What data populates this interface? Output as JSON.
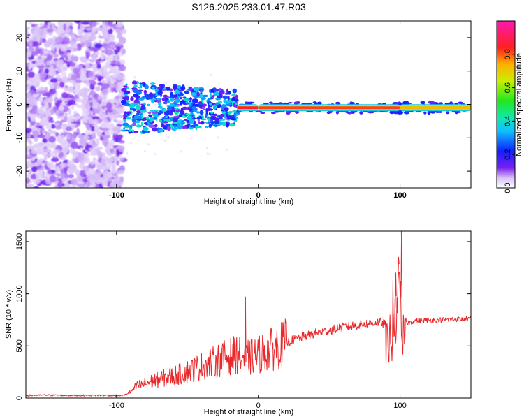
{
  "title": "S126.2025.233.01.47.R03",
  "colors": {
    "snr_line": "#e8282a",
    "cloud": "#6a16e6",
    "band_core": "#e01020",
    "band_mid": "#10c0ff",
    "background": "#ffffff"
  },
  "chart_data": [
    {
      "type": "heatmap",
      "title": "S126.2025.233.01.47.R03",
      "xlabel": "Height of straight line (km)",
      "ylabel": "Frequency (Hz)",
      "xlim": [
        -164,
        150
      ],
      "ylim": [
        -25,
        25
      ],
      "x_ticks": [
        -100,
        0,
        100
      ],
      "x_tick_labels": [
        "-100",
        "0",
        "100"
      ],
      "y_ticks": [
        -20,
        -10,
        0,
        10,
        20
      ],
      "y_tick_labels": [
        "-20",
        "-10",
        "0",
        "10",
        "20"
      ],
      "colorbar": {
        "label": "Normalized spectral amplitude",
        "range": [
          0.0,
          1.0
        ],
        "ticks": [
          0.0,
          0.2,
          0.4,
          0.6,
          0.8
        ],
        "tick_labels": [
          "0.0",
          "0.2",
          "0.4",
          "0.6",
          "0.8"
        ],
        "colormap": "rainbow"
      },
      "band": {
        "frequency_hz": -1,
        "starts_at_km": -95,
        "segments": [
          {
            "x": [
              -95,
              -60
            ],
            "amplitude": 0.35
          },
          {
            "x": [
              -60,
              -20
            ],
            "amplitude": 0.3
          },
          {
            "x": [
              -15,
              0
            ],
            "amplitude": 1.0
          },
          {
            "x": [
              0,
              100
            ],
            "amplitude": 0.95
          },
          {
            "x": [
              100,
              150
            ],
            "amplitude": 0.85
          }
        ]
      },
      "noise_region": {
        "x": [
          -164,
          -95
        ],
        "amplitude": 0.1
      }
    },
    {
      "type": "line",
      "xlabel": "Height of straight line (km)",
      "ylabel": "SNR (10 * v/v)",
      "xlim": [
        -164,
        150
      ],
      "ylim": [
        0,
        1600
      ],
      "x_ticks": [
        -100,
        0,
        100
      ],
      "x_tick_labels": [
        "-100",
        "0",
        "100"
      ],
      "y_ticks": [
        0,
        500,
        1000,
        1500
      ],
      "y_tick_labels": [
        "0",
        "500",
        "1000",
        "1500"
      ],
      "series": [
        {
          "x": [
            -164,
            -150,
            -130,
            -110,
            -95,
            -90,
            -85,
            -75,
            -65,
            -55,
            -45,
            -35,
            -25,
            -15,
            -10,
            -5,
            0,
            5,
            10,
            15,
            20,
            25,
            30,
            40,
            50,
            60,
            70,
            75,
            80,
            85,
            90,
            95,
            100,
            102,
            105,
            110,
            120,
            130,
            140,
            150
          ],
          "y": [
            25,
            28,
            25,
            27,
            25,
            60,
            120,
            160,
            200,
            230,
            280,
            330,
            380,
            420,
            380,
            390,
            420,
            450,
            470,
            500,
            530,
            560,
            580,
            620,
            650,
            680,
            700,
            710,
            720,
            730,
            700,
            740,
            1600,
            800,
            720,
            740,
            745,
            750,
            755,
            760
          ],
          "spikes": [
            {
              "x": -9,
              "y": 970
            },
            {
              "x": 95,
              "y": 1130
            },
            {
              "x": 97,
              "y": 1200
            },
            {
              "x": 99,
              "y": 1350
            },
            {
              "x": 101,
              "y": 1600
            }
          ]
        }
      ]
    }
  ]
}
